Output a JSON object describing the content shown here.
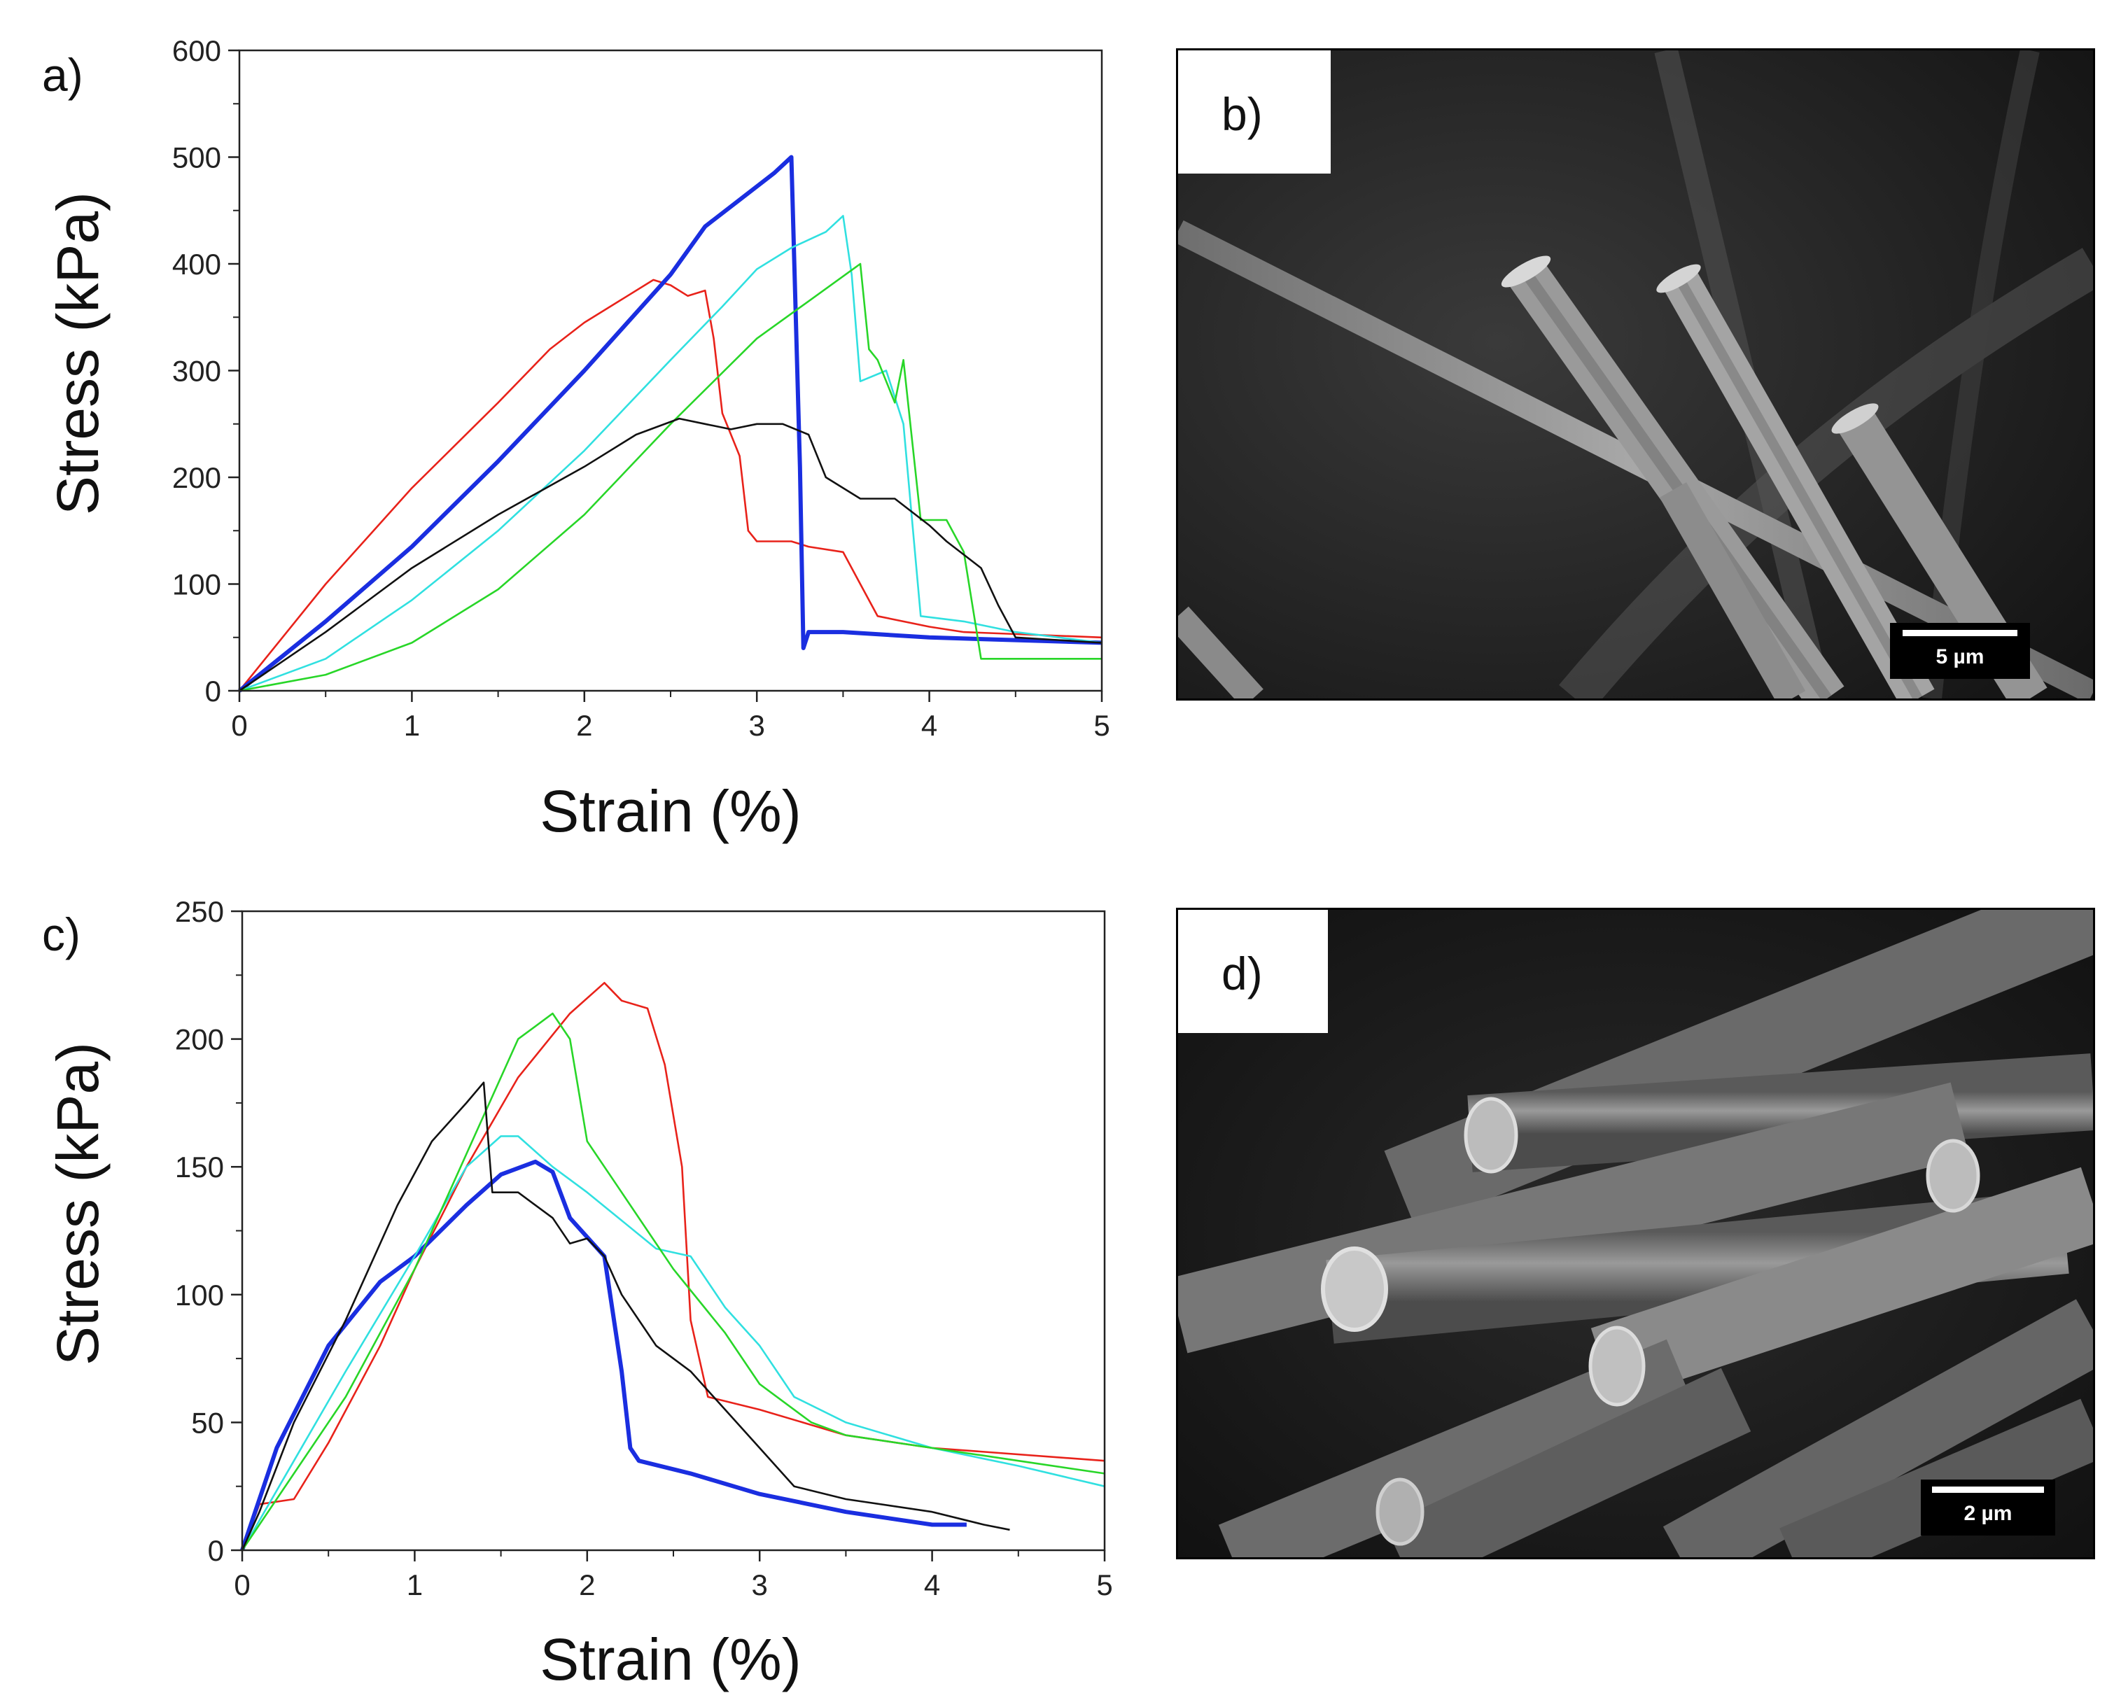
{
  "panels": {
    "a": "a)",
    "b": "b)",
    "c": "c)",
    "d": "d)"
  },
  "sem": {
    "b": {
      "scale_text": "5 µm"
    },
    "d": {
      "scale_text": "2 µm"
    }
  },
  "colors": {
    "red": "#e8221a",
    "blue": "#1a2ee0",
    "cyan": "#30e0e0",
    "green": "#28d628",
    "black": "#111111"
  },
  "chart_data": [
    {
      "id": "a",
      "type": "line",
      "xlabel": "Strain (%)",
      "ylabel": "Stress (kPa)",
      "xlim": [
        0,
        5
      ],
      "ylim": [
        0,
        600
      ],
      "xticks": [
        0,
        1,
        2,
        3,
        4,
        5
      ],
      "yticks": [
        0,
        100,
        200,
        300,
        400,
        500,
        600
      ],
      "series": [
        {
          "color": "red",
          "x": [
            0,
            0.5,
            1,
            1.5,
            1.8,
            2.0,
            2.2,
            2.4,
            2.5,
            2.6,
            2.7,
            2.75,
            2.8,
            2.9,
            2.95,
            3.0,
            3.2,
            3.3,
            3.5,
            3.6,
            3.7,
            4.0,
            4.2,
            5.0
          ],
          "y": [
            0,
            100,
            190,
            270,
            320,
            345,
            365,
            385,
            380,
            370,
            375,
            330,
            260,
            220,
            150,
            140,
            140,
            135,
            130,
            100,
            70,
            60,
            55,
            50
          ]
        },
        {
          "color": "blue",
          "x": [
            0,
            0.5,
            1.0,
            1.5,
            2.0,
            2.5,
            2.7,
            2.9,
            3.1,
            3.2,
            3.25,
            3.27,
            3.3,
            3.5,
            4.0,
            5.0
          ],
          "y": [
            0,
            65,
            135,
            215,
            300,
            390,
            435,
            460,
            485,
            500,
            210,
            40,
            55,
            55,
            50,
            45
          ]
        },
        {
          "color": "cyan",
          "x": [
            0,
            0.5,
            1.0,
            1.5,
            2.0,
            2.5,
            2.8,
            3.0,
            3.2,
            3.4,
            3.5,
            3.55,
            3.6,
            3.75,
            3.85,
            3.95,
            4.2,
            4.5,
            5.0
          ],
          "y": [
            0,
            30,
            85,
            150,
            225,
            310,
            360,
            395,
            415,
            430,
            445,
            390,
            290,
            300,
            250,
            70,
            65,
            55,
            45
          ]
        },
        {
          "color": "green",
          "x": [
            0,
            0.5,
            1.0,
            1.5,
            2.0,
            2.5,
            3.0,
            3.3,
            3.6,
            3.65,
            3.7,
            3.8,
            3.85,
            3.95,
            4.1,
            4.2,
            4.3,
            4.5,
            5.0
          ],
          "y": [
            0,
            15,
            45,
            95,
            165,
            250,
            330,
            365,
            400,
            320,
            310,
            270,
            310,
            160,
            160,
            130,
            30,
            30,
            30
          ]
        },
        {
          "color": "black",
          "x": [
            0,
            0.5,
            1.0,
            1.5,
            2.0,
            2.3,
            2.55,
            2.7,
            2.85,
            3.0,
            3.15,
            3.3,
            3.4,
            3.6,
            3.8,
            4.0,
            4.1,
            4.3,
            4.4,
            4.5,
            5.0
          ],
          "y": [
            0,
            55,
            115,
            165,
            210,
            240,
            255,
            250,
            245,
            250,
            250,
            240,
            200,
            180,
            180,
            155,
            140,
            115,
            80,
            50,
            45
          ]
        }
      ]
    },
    {
      "id": "c",
      "type": "line",
      "xlabel": "Strain (%)",
      "ylabel": "Stress (kPa)",
      "xlim": [
        0,
        5
      ],
      "ylim": [
        0,
        250
      ],
      "xticks": [
        0,
        1,
        2,
        3,
        4,
        5
      ],
      "yticks": [
        0,
        50,
        100,
        150,
        200,
        250
      ],
      "series": [
        {
          "color": "red",
          "x": [
            0,
            0.1,
            0.3,
            0.5,
            0.8,
            1.0,
            1.3,
            1.6,
            1.9,
            2.1,
            2.2,
            2.35,
            2.45,
            2.55,
            2.6,
            2.7,
            3.0,
            3.5,
            4.0,
            5.0
          ],
          "y": [
            0,
            18,
            20,
            42,
            80,
            110,
            150,
            185,
            210,
            222,
            215,
            212,
            190,
            150,
            90,
            60,
            55,
            45,
            40,
            35
          ]
        },
        {
          "color": "blue",
          "x": [
            0,
            0.2,
            0.5,
            0.8,
            1.0,
            1.3,
            1.5,
            1.7,
            1.8,
            1.9,
            2.1,
            2.2,
            2.25,
            2.3,
            2.6,
            3.0,
            3.5,
            4.0,
            4.2
          ],
          "y": [
            0,
            40,
            80,
            105,
            115,
            135,
            147,
            152,
            148,
            130,
            115,
            70,
            40,
            35,
            30,
            22,
            15,
            10,
            10
          ]
        },
        {
          "color": "cyan",
          "x": [
            0,
            0.3,
            0.6,
            1.0,
            1.3,
            1.5,
            1.6,
            1.8,
            2.0,
            2.4,
            2.6,
            2.8,
            3.0,
            3.2,
            3.5,
            4.0,
            4.5,
            5.0
          ],
          "y": [
            0,
            35,
            70,
            115,
            150,
            162,
            162,
            150,
            140,
            118,
            115,
            95,
            80,
            60,
            50,
            40,
            33,
            25
          ]
        },
        {
          "color": "green",
          "x": [
            0,
            0.3,
            0.6,
            1.0,
            1.3,
            1.6,
            1.8,
            1.9,
            2.0,
            2.2,
            2.5,
            2.8,
            3.0,
            3.3,
            3.5,
            4.0,
            4.5,
            5.0
          ],
          "y": [
            0,
            30,
            60,
            110,
            155,
            200,
            210,
            200,
            160,
            140,
            110,
            85,
            65,
            50,
            45,
            40,
            35,
            30
          ]
        },
        {
          "color": "black",
          "x": [
            0,
            0.1,
            0.3,
            0.6,
            0.9,
            1.1,
            1.3,
            1.4,
            1.45,
            1.6,
            1.8,
            1.9,
            2.0,
            2.1,
            2.2,
            2.4,
            2.6,
            2.8,
            3.0,
            3.2,
            3.5,
            4.0,
            4.3,
            4.45
          ],
          "y": [
            0,
            15,
            50,
            90,
            135,
            160,
            175,
            183,
            140,
            140,
            130,
            120,
            122,
            115,
            100,
            80,
            70,
            55,
            40,
            25,
            20,
            15,
            10,
            8
          ]
        }
      ]
    }
  ]
}
